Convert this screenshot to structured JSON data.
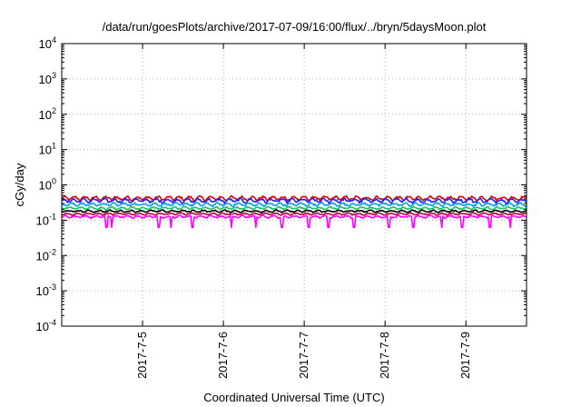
{
  "chart_data": {
    "type": "line",
    "title": "/data/run/goesPlots/archive/2017-07-09/16:00/flux/../bryn/5daysMoon.plot",
    "xlabel": "Coordinated Universal Time (UTC)",
    "ylabel": "cGy/day",
    "yscale": "log",
    "ylim": [
      0.0001,
      10000
    ],
    "xlim": [
      0,
      5.75
    ],
    "grid": true,
    "legend": "none",
    "y_ticks": [
      {
        "base": "10",
        "exp": "-4",
        "value": 0.0001
      },
      {
        "base": "10",
        "exp": "-3",
        "value": 0.001
      },
      {
        "base": "10",
        "exp": "-2",
        "value": 0.01
      },
      {
        "base": "10",
        "exp": "-1",
        "value": 0.1
      },
      {
        "base": "10",
        "exp": "0",
        "value": 1
      },
      {
        "base": "10",
        "exp": "1",
        "value": 10
      },
      {
        "base": "10",
        "exp": "2",
        "value": 100
      },
      {
        "base": "10",
        "exp": "3",
        "value": 1000
      },
      {
        "base": "10",
        "exp": "4",
        "value": 10000
      }
    ],
    "x_ticks": [
      {
        "label": "2017-7-5",
        "value": 1
      },
      {
        "label": "2017-7-6",
        "value": 2
      },
      {
        "label": "2017-7-7",
        "value": 3
      },
      {
        "label": "2017-7-8",
        "value": 4
      },
      {
        "label": "2017-7-9",
        "value": 5
      }
    ],
    "series": [
      {
        "color": "#e00000",
        "level": 0.42,
        "noise": 0.1,
        "dips": false
      },
      {
        "color": "#2020ff",
        "level": 0.36,
        "noise": 0.1,
        "dips": false
      },
      {
        "color": "#00a0e0",
        "level": 0.28,
        "noise": 0.08,
        "dips": false
      },
      {
        "color": "#20c060",
        "level": 0.22,
        "noise": 0.06,
        "dips": false
      },
      {
        "color": "#000000",
        "level": 0.18,
        "noise": 0.05,
        "dips": false
      },
      {
        "color": "#c00040",
        "level": 0.15,
        "noise": 0.05,
        "dips": false
      },
      {
        "color": "#ff00ff",
        "level": 0.125,
        "noise": 0.06,
        "dips": true
      }
    ]
  }
}
